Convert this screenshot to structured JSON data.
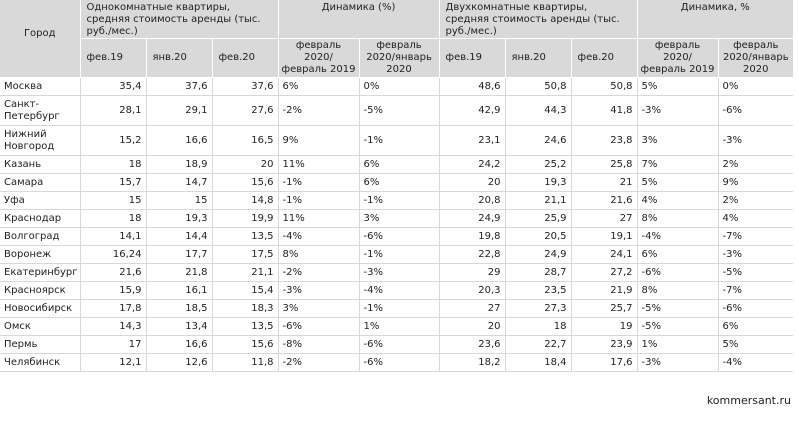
{
  "table": {
    "city_header": "Город",
    "group_headers": [
      "Однокомнатные квартиры, средняя стоимость аренды (тыс. руб./мес.)",
      "Динамика (%)",
      "Двухкомнатные квартиры, средняя стоимость аренды (тыс. руб./мес.)",
      "Динамика, %"
    ],
    "sub_headers": [
      "фев.19",
      "янв.20",
      "фев.20",
      "февраль 2020/февраль 2019",
      "февраль 2020/январь 2020",
      "фев.19",
      "янв.20",
      "фев.20",
      "февраль 2020/февраль 2019",
      "февраль 2020/январь 2020"
    ],
    "rows": [
      {
        "city": "Москва",
        "cells": [
          "35,4",
          "37,6",
          "37,6",
          "6%",
          "0%",
          "48,6",
          "50,8",
          "50,8",
          "5%",
          "0%"
        ]
      },
      {
        "city": "Санкт-Петербург",
        "cells": [
          "28,1",
          "29,1",
          "27,6",
          "-2%",
          "-5%",
          "42,9",
          "44,3",
          "41,8",
          "-3%",
          "-6%"
        ]
      },
      {
        "city": "Нижний Новгород",
        "cells": [
          "15,2",
          "16,6",
          "16,5",
          "9%",
          "-1%",
          "23,1",
          "24,6",
          "23,8",
          "3%",
          "-3%"
        ]
      },
      {
        "city": "Казань",
        "cells": [
          "18",
          "18,9",
          "20",
          "11%",
          "6%",
          "24,2",
          "25,2",
          "25,8",
          "7%",
          "2%"
        ]
      },
      {
        "city": "Самара",
        "cells": [
          "15,7",
          "14,7",
          "15,6",
          "-1%",
          "6%",
          "20",
          "19,3",
          "21",
          "5%",
          "9%"
        ]
      },
      {
        "city": "Уфа",
        "cells": [
          "15",
          "15",
          "14,8",
          "-1%",
          "-1%",
          "20,8",
          "21,1",
          "21,6",
          "4%",
          "2%"
        ]
      },
      {
        "city": "Краснодар",
        "cells": [
          "18",
          "19,3",
          "19,9",
          "11%",
          "3%",
          "24,9",
          "25,9",
          "27",
          "8%",
          "4%"
        ]
      },
      {
        "city": "Волгоград",
        "cells": [
          "14,1",
          "14,4",
          "13,5",
          "-4%",
          "-6%",
          "19,8",
          "20,5",
          "19,1",
          "-4%",
          "-7%"
        ]
      },
      {
        "city": "Воронеж",
        "cells": [
          "16,24",
          "17,7",
          "17,5",
          "8%",
          "-1%",
          "22,8",
          "24,9",
          "24,1",
          "6%",
          "-3%"
        ]
      },
      {
        "city": "Екатеринбург",
        "cells": [
          "21,6",
          "21,8",
          "21,1",
          "-2%",
          "-3%",
          "29",
          "28,7",
          "27,2",
          "-6%",
          "-5%"
        ]
      },
      {
        "city": "Красноярск",
        "cells": [
          "15,9",
          "16,1",
          "15,4",
          "-3%",
          "-4%",
          "20,3",
          "23,5",
          "21,9",
          "8%",
          "-7%"
        ]
      },
      {
        "city": "Новосибирск",
        "cells": [
          "17,8",
          "18,5",
          "18,3",
          "3%",
          "-1%",
          "27",
          "27,3",
          "25,7",
          "-5%",
          "-6%"
        ]
      },
      {
        "city": "Омск",
        "cells": [
          "14,3",
          "13,4",
          "13,5",
          "-6%",
          "1%",
          "20",
          "18",
          "19",
          "-5%",
          "6%"
        ]
      },
      {
        "city": "Пермь",
        "cells": [
          "17",
          "16,6",
          "15,6",
          "-8%",
          "-6%",
          "23,6",
          "22,7",
          "23,9",
          "1%",
          "5%"
        ]
      },
      {
        "city": "Челябинск",
        "cells": [
          "12,1",
          "12,6",
          "11,8",
          "-2%",
          "-6%",
          "18,2",
          "18,4",
          "17,6",
          "-3%",
          "-4%"
        ]
      }
    ]
  },
  "source": "kommersant.ru"
}
